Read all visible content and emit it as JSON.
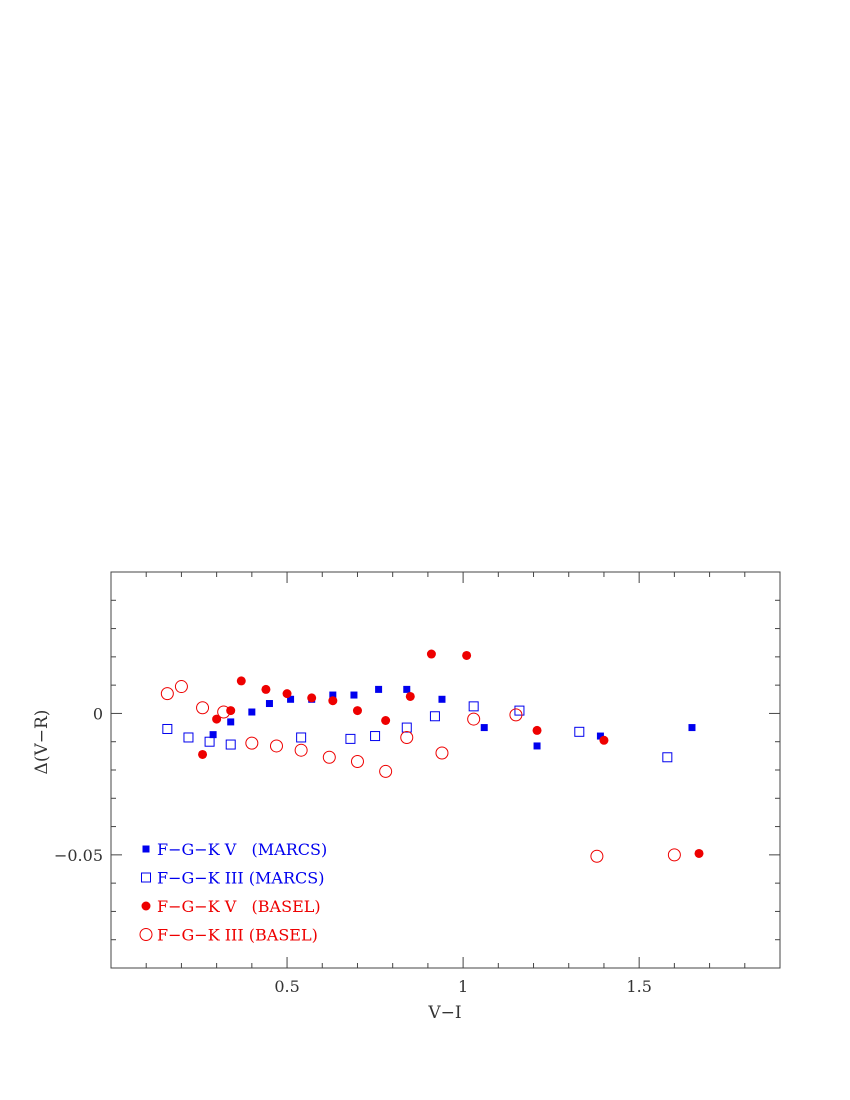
{
  "chart_data": {
    "type": "scatter",
    "xlabel": "V−I",
    "ylabel": "Δ(V−R)",
    "xlim": [
      0.0,
      1.9
    ],
    "ylim": [
      -0.09,
      0.05
    ],
    "x_ticks": [
      0.5,
      1,
      1.5
    ],
    "x_tick_labels": [
      "0.5",
      "1",
      "1.5"
    ],
    "y_ticks": [
      0,
      -0.05
    ],
    "y_tick_labels": [
      "0",
      "−0.05"
    ],
    "grid": false,
    "legend_position": "bottom-left",
    "series": [
      {
        "name": "F−G−K V   (MARCS)",
        "marker": "filled-square",
        "color": "#0000ee",
        "points": [
          [
            0.29,
            -0.0075
          ],
          [
            0.34,
            -0.003
          ],
          [
            0.4,
            0.0005
          ],
          [
            0.45,
            0.0035
          ],
          [
            0.51,
            0.005
          ],
          [
            0.57,
            0.005
          ],
          [
            0.63,
            0.0065
          ],
          [
            0.69,
            0.0065
          ],
          [
            0.76,
            0.0085
          ],
          [
            0.84,
            0.0085
          ],
          [
            0.94,
            0.005
          ],
          [
            1.06,
            -0.005
          ],
          [
            1.21,
            -0.0115
          ],
          [
            1.39,
            -0.008
          ],
          [
            1.65,
            -0.005
          ]
        ]
      },
      {
        "name": "F−G−K III (MARCS)",
        "marker": "open-square",
        "color": "#0000ee",
        "points": [
          [
            0.16,
            -0.0055
          ],
          [
            0.22,
            -0.0085
          ],
          [
            0.28,
            -0.01
          ],
          [
            0.34,
            -0.011
          ],
          [
            0.54,
            -0.0085
          ],
          [
            0.68,
            -0.009
          ],
          [
            0.75,
            -0.008
          ],
          [
            0.84,
            -0.005
          ],
          [
            0.92,
            -0.001
          ],
          [
            1.03,
            0.0025
          ],
          [
            1.16,
            0.001
          ],
          [
            1.33,
            -0.0065
          ],
          [
            1.58,
            -0.0155
          ]
        ]
      },
      {
        "name": "F−G−K V   (BASEL)",
        "marker": "filled-circle",
        "color": "#ee0000",
        "points": [
          [
            0.26,
            -0.0145
          ],
          [
            0.3,
            -0.002
          ],
          [
            0.34,
            0.001
          ],
          [
            0.37,
            0.0115
          ],
          [
            0.44,
            0.0085
          ],
          [
            0.5,
            0.007
          ],
          [
            0.57,
            0.0055
          ],
          [
            0.63,
            0.0045
          ],
          [
            0.7,
            0.001
          ],
          [
            0.78,
            -0.0025
          ],
          [
            0.85,
            0.006
          ],
          [
            0.91,
            0.021
          ],
          [
            1.01,
            0.0205
          ],
          [
            1.21,
            -0.006
          ],
          [
            1.4,
            -0.0095
          ],
          [
            1.67,
            -0.0495
          ]
        ]
      },
      {
        "name": "F−G−K III (BASEL)",
        "marker": "open-circle",
        "color": "#ee0000",
        "points": [
          [
            0.16,
            0.007
          ],
          [
            0.2,
            0.0095
          ],
          [
            0.26,
            0.002
          ],
          [
            0.32,
            0.0005
          ],
          [
            0.4,
            -0.0105
          ],
          [
            0.47,
            -0.0115
          ],
          [
            0.54,
            -0.013
          ],
          [
            0.62,
            -0.0155
          ],
          [
            0.7,
            -0.017
          ],
          [
            0.78,
            -0.0205
          ],
          [
            0.84,
            -0.0085
          ],
          [
            0.94,
            -0.014
          ],
          [
            1.03,
            -0.002
          ],
          [
            1.15,
            -0.0005
          ],
          [
            1.38,
            -0.0505
          ],
          [
            1.6,
            -0.05
          ]
        ]
      }
    ]
  }
}
